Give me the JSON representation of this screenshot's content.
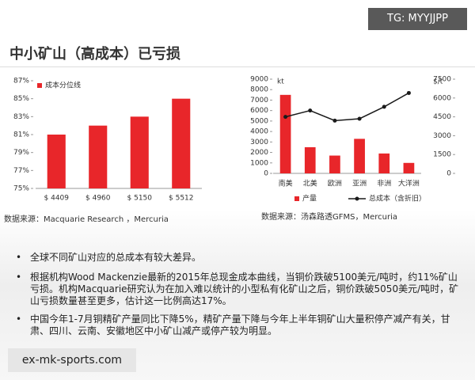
{
  "header": {
    "title": "中小矿山（高成本）已亏损",
    "tag": "TG: MYYJJPP"
  },
  "chart_data": [
    {
      "type": "bar",
      "categories": [
        "$ 4409",
        "$ 4960",
        "$ 5150",
        "$ 5512"
      ],
      "series": [
        {
          "name": "成本分位线",
          "color": "#e8262a",
          "values": [
            81,
            82,
            83,
            85
          ]
        }
      ],
      "ylim": [
        75,
        87
      ],
      "yticks": [
        {
          "value": 75,
          "label": "75%"
        },
        {
          "value": 77,
          "label": "77%"
        },
        {
          "value": 79,
          "label": "79%"
        },
        {
          "value": 81,
          "label": "81%"
        },
        {
          "value": 83,
          "label": "83%"
        },
        {
          "value": 85,
          "label": "85%"
        },
        {
          "value": 87,
          "label": "87%"
        }
      ],
      "source": "数据来源：Macquarie Research ，Mercuria"
    },
    {
      "type": "combo",
      "categories": [
        "南美",
        "北美",
        "欧洲",
        "亚洲",
        "非洲",
        "大洋洲"
      ],
      "y_label": "kt",
      "y2_label": "$/t",
      "series": [
        {
          "name": "产量",
          "type": "bar",
          "color": "#e8262a",
          "values": [
            7500,
            2500,
            1700,
            3300,
            1900,
            1000
          ]
        },
        {
          "name": "总成本（含折旧）",
          "type": "line",
          "axis": "y2",
          "color": "#1a1a1a",
          "values": [
            4500,
            5000,
            4200,
            4350,
            5300,
            6400
          ]
        }
      ],
      "ylim": [
        0,
        9000
      ],
      "yticks": [
        0,
        1000,
        2000,
        3000,
        4000,
        5000,
        6000,
        7000,
        8000,
        9000
      ],
      "y2lim": [
        0,
        7500
      ],
      "y2ticks": [
        0,
        1500,
        3000,
        4500,
        6000,
        7500
      ],
      "source": "数据来源：汤森路透GFMS，Mercuria"
    }
  ],
  "bullets": [
    "全球不同矿山对应的总成本有较大差异。",
    "根据机构Wood Mackenzie最新的2015年总现金成本曲线，当铜价跌破5100美元/吨时，约11%矿山亏损。机构Macquarie研究认为在加入难以统计的小型私有化矿山之后，铜价跌破5050美元/吨时，矿山亏损数量甚至更多，估计这一比例高达17%。",
    "中国今年1-7月铜精矿产量同比下降5%，精矿产量下降与今年上半年铜矿山大量积停产减产有关，甘肃、四川、云南、安徽地区中小矿山减产或停产较为明显。"
  ],
  "footer": "ex-mk-sports.com"
}
